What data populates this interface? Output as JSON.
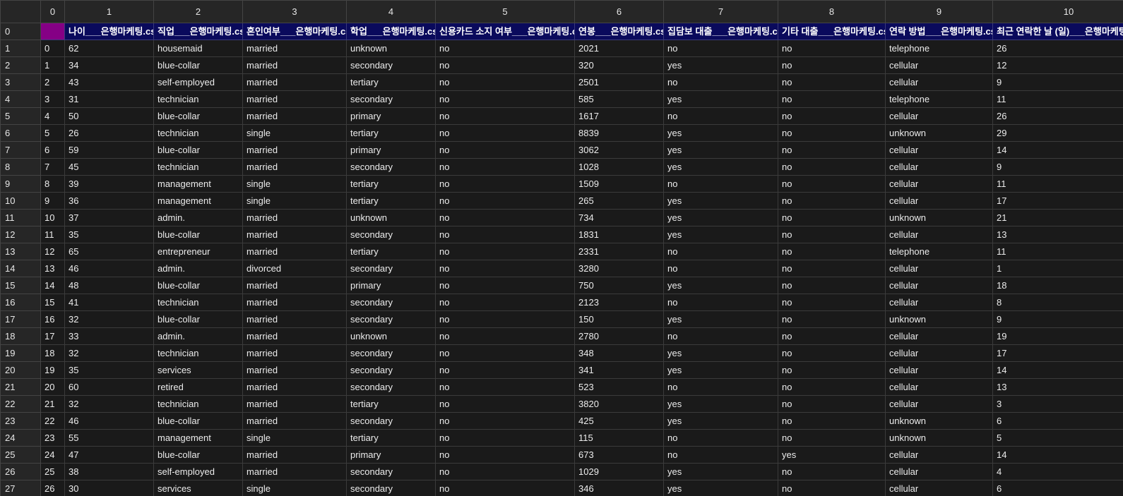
{
  "column_index_labels": [
    "0",
    "1",
    "2",
    "3",
    "4",
    "5",
    "6",
    "7",
    "8",
    "9",
    "10"
  ],
  "header_row": {
    "index": "0",
    "cells": [
      "",
      "나이___은행마케팅.csv",
      "직업___은행마케팅.csv",
      "혼인여부___은행마케팅.csv",
      "학업___은행마케팅.csv",
      "신용카드 소지 여부___은행마케팅.csv",
      "연봉___은행마케팅.csv",
      "집담보 대출___은행마케팅.csv",
      "기타 대출___은행마케팅.csv",
      "연락 방법___은행마케팅.csv",
      "최근 연락한 날 (일)___은행마케팅.csv"
    ]
  },
  "rows": [
    {
      "index": "1",
      "cells": [
        "0",
        "62",
        "housemaid",
        "married",
        "unknown",
        "no",
        "2021",
        "no",
        "no",
        "telephone",
        "26"
      ]
    },
    {
      "index": "2",
      "cells": [
        "1",
        "34",
        "blue-collar",
        "married",
        "secondary",
        "no",
        "320",
        "yes",
        "no",
        "cellular",
        "12"
      ]
    },
    {
      "index": "3",
      "cells": [
        "2",
        "43",
        "self-employed",
        "married",
        "tertiary",
        "no",
        "2501",
        "no",
        "no",
        "cellular",
        "9"
      ]
    },
    {
      "index": "4",
      "cells": [
        "3",
        "31",
        "technician",
        "married",
        "secondary",
        "no",
        "585",
        "yes",
        "no",
        "telephone",
        "11"
      ]
    },
    {
      "index": "5",
      "cells": [
        "4",
        "50",
        "blue-collar",
        "married",
        "primary",
        "no",
        "1617",
        "no",
        "no",
        "cellular",
        "26"
      ]
    },
    {
      "index": "6",
      "cells": [
        "5",
        "26",
        "technician",
        "single",
        "tertiary",
        "no",
        "8839",
        "yes",
        "no",
        "unknown",
        "29"
      ]
    },
    {
      "index": "7",
      "cells": [
        "6",
        "59",
        "blue-collar",
        "married",
        "primary",
        "no",
        "3062",
        "yes",
        "no",
        "cellular",
        "14"
      ]
    },
    {
      "index": "8",
      "cells": [
        "7",
        "45",
        "technician",
        "married",
        "secondary",
        "no",
        "1028",
        "yes",
        "no",
        "cellular",
        "9"
      ]
    },
    {
      "index": "9",
      "cells": [
        "8",
        "39",
        "management",
        "single",
        "tertiary",
        "no",
        "1509",
        "no",
        "no",
        "cellular",
        "11"
      ]
    },
    {
      "index": "10",
      "cells": [
        "9",
        "36",
        "management",
        "single",
        "tertiary",
        "no",
        "265",
        "yes",
        "no",
        "cellular",
        "17"
      ]
    },
    {
      "index": "11",
      "cells": [
        "10",
        "37",
        "admin.",
        "married",
        "unknown",
        "no",
        "734",
        "yes",
        "no",
        "unknown",
        "21"
      ]
    },
    {
      "index": "12",
      "cells": [
        "11",
        "35",
        "blue-collar",
        "married",
        "secondary",
        "no",
        "1831",
        "yes",
        "no",
        "cellular",
        "13"
      ]
    },
    {
      "index": "13",
      "cells": [
        "12",
        "65",
        "entrepreneur",
        "married",
        "tertiary",
        "no",
        "2331",
        "no",
        "no",
        "telephone",
        "11"
      ]
    },
    {
      "index": "14",
      "cells": [
        "13",
        "46",
        "admin.",
        "divorced",
        "secondary",
        "no",
        "3280",
        "no",
        "no",
        "cellular",
        "1"
      ]
    },
    {
      "index": "15",
      "cells": [
        "14",
        "48",
        "blue-collar",
        "married",
        "primary",
        "no",
        "750",
        "yes",
        "no",
        "cellular",
        "18"
      ]
    },
    {
      "index": "16",
      "cells": [
        "15",
        "41",
        "technician",
        "married",
        "secondary",
        "no",
        "2123",
        "no",
        "no",
        "cellular",
        "8"
      ]
    },
    {
      "index": "17",
      "cells": [
        "16",
        "32",
        "blue-collar",
        "married",
        "secondary",
        "no",
        "150",
        "yes",
        "no",
        "unknown",
        "9"
      ]
    },
    {
      "index": "18",
      "cells": [
        "17",
        "33",
        "admin.",
        "married",
        "unknown",
        "no",
        "2780",
        "no",
        "no",
        "cellular",
        "19"
      ]
    },
    {
      "index": "19",
      "cells": [
        "18",
        "32",
        "technician",
        "married",
        "secondary",
        "no",
        "348",
        "yes",
        "no",
        "cellular",
        "17"
      ]
    },
    {
      "index": "20",
      "cells": [
        "19",
        "35",
        "services",
        "married",
        "secondary",
        "no",
        "341",
        "yes",
        "no",
        "cellular",
        "14"
      ]
    },
    {
      "index": "21",
      "cells": [
        "20",
        "60",
        "retired",
        "married",
        "secondary",
        "no",
        "523",
        "no",
        "no",
        "cellular",
        "13"
      ]
    },
    {
      "index": "22",
      "cells": [
        "21",
        "32",
        "technician",
        "married",
        "tertiary",
        "no",
        "3820",
        "yes",
        "no",
        "cellular",
        "3"
      ]
    },
    {
      "index": "23",
      "cells": [
        "22",
        "46",
        "blue-collar",
        "married",
        "secondary",
        "no",
        "425",
        "yes",
        "no",
        "unknown",
        "6"
      ]
    },
    {
      "index": "24",
      "cells": [
        "23",
        "55",
        "management",
        "single",
        "tertiary",
        "no",
        "115",
        "no",
        "no",
        "unknown",
        "5"
      ]
    },
    {
      "index": "25",
      "cells": [
        "24",
        "47",
        "blue-collar",
        "married",
        "primary",
        "no",
        "673",
        "no",
        "yes",
        "cellular",
        "14"
      ]
    },
    {
      "index": "26",
      "cells": [
        "25",
        "38",
        "self-employed",
        "married",
        "secondary",
        "no",
        "1029",
        "yes",
        "no",
        "cellular",
        "4"
      ]
    },
    {
      "index": "27",
      "cells": [
        "26",
        "30",
        "services",
        "single",
        "secondary",
        "no",
        "346",
        "yes",
        "no",
        "cellular",
        "6"
      ]
    }
  ],
  "colors": {
    "header_row_bg": "#0a0a5c",
    "selected_cell_bg": "#850085",
    "grid_bg": "#1a1a1a",
    "index_bg": "#262626"
  }
}
